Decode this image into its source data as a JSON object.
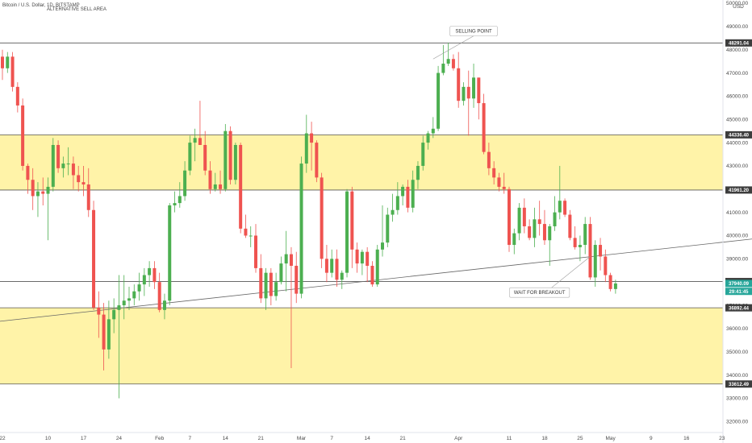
{
  "chart_data": {
    "type": "candlestick",
    "title": "Bitcoin / U.S. Dollar, 1D, BITSTAMP",
    "subtitle": "ALTERNATIVE SELL AREA",
    "currency": "USD",
    "y_range": [
      31800,
      50200
    ],
    "y_ticks": [
      32000,
      33000,
      34000,
      35000,
      36000,
      37000,
      38000,
      39000,
      40000,
      41000,
      42000,
      43000,
      44000,
      45000,
      46000,
      47000,
      48000,
      49000,
      50000
    ],
    "x_ticks": [
      {
        "label": "22",
        "bar": 0
      },
      {
        "label": "10",
        "bar": 9
      },
      {
        "label": "17",
        "bar": 16
      },
      {
        "label": "24",
        "bar": 23
      },
      {
        "label": "Feb",
        "bar": 31
      },
      {
        "label": "7",
        "bar": 37
      },
      {
        "label": "14",
        "bar": 44
      },
      {
        "label": "21",
        "bar": 51
      },
      {
        "label": "Mar",
        "bar": 59
      },
      {
        "label": "7",
        "bar": 65
      },
      {
        "label": "14",
        "bar": 72
      },
      {
        "label": "21",
        "bar": 79
      },
      {
        "label": "Apr",
        "bar": 90
      },
      {
        "label": "11",
        "bar": 100
      },
      {
        "label": "18",
        "bar": 107
      },
      {
        "label": "25",
        "bar": 114
      },
      {
        "label": "May",
        "bar": 120
      },
      {
        "label": "9",
        "bar": 128
      },
      {
        "label": "16",
        "bar": 135
      },
      {
        "label": "23",
        "bar": 142
      }
    ],
    "zones": [
      {
        "from": 41961.2,
        "to": 44336.4,
        "color": "#fff3a8"
      },
      {
        "from": 33612.49,
        "to": 36892.44,
        "color": "#fff3a8"
      }
    ],
    "levels": [
      {
        "value": 48291.04,
        "label": "48291.04"
      },
      {
        "value": 44336.4,
        "label": "44336.40"
      },
      {
        "value": 41961.2,
        "label": "41961.20"
      },
      {
        "value": 38022.53,
        "label": "38022.53"
      },
      {
        "value": 36892.44,
        "label": "36892.44"
      },
      {
        "value": 33612.49,
        "label": "33612.49"
      }
    ],
    "price_labels": [
      {
        "value": 37940.09,
        "label": "37940.09",
        "color": "#26a69a"
      },
      {
        "value": 37600,
        "label": "29:41:45",
        "color": "#26a69a"
      }
    ],
    "trendline": {
      "from": [
        -1,
        36300
      ],
      "to": [
        152,
        39950
      ]
    },
    "annotations": [
      {
        "text": "SELLING POINT",
        "bar": 93,
        "price": 48800,
        "target_bar": 85,
        "target_price": 47600
      },
      {
        "text": "WAIT FOR BREAKOUT",
        "bar": 106,
        "price": 37550,
        "target_bar": 116,
        "target_price": 39100
      }
    ],
    "colors": {
      "up": "#4caf50",
      "down": "#ef5350",
      "level": "#555555",
      "trend": "#666666"
    },
    "candles": [
      {
        "o": 47700,
        "h": 48000,
        "l": 46700,
        "c": 47200
      },
      {
        "o": 47200,
        "h": 47900,
        "l": 47000,
        "c": 47700
      },
      {
        "o": 47700,
        "h": 47900,
        "l": 46200,
        "c": 46400
      },
      {
        "o": 46400,
        "h": 46600,
        "l": 45300,
        "c": 45600
      },
      {
        "o": 45600,
        "h": 45900,
        "l": 42800,
        "c": 43000
      },
      {
        "o": 43000,
        "h": 43100,
        "l": 41800,
        "c": 42400
      },
      {
        "o": 42400,
        "h": 42900,
        "l": 41100,
        "c": 41700
      },
      {
        "o": 41700,
        "h": 42300,
        "l": 40800,
        "c": 41900
      },
      {
        "o": 41900,
        "h": 42500,
        "l": 41300,
        "c": 41800
      },
      {
        "o": 41800,
        "h": 42500,
        "l": 39800,
        "c": 42100
      },
      {
        "o": 42100,
        "h": 44200,
        "l": 41900,
        "c": 43900
      },
      {
        "o": 43900,
        "h": 44100,
        "l": 42700,
        "c": 42900
      },
      {
        "o": 42900,
        "h": 43400,
        "l": 42500,
        "c": 43100
      },
      {
        "o": 43100,
        "h": 43800,
        "l": 42600,
        "c": 43100
      },
      {
        "o": 43100,
        "h": 43400,
        "l": 42000,
        "c": 42600
      },
      {
        "o": 42600,
        "h": 43000,
        "l": 41900,
        "c": 42300
      },
      {
        "o": 42300,
        "h": 43000,
        "l": 41700,
        "c": 42200
      },
      {
        "o": 42200,
        "h": 42900,
        "l": 40800,
        "c": 41100
      },
      {
        "o": 41100,
        "h": 41500,
        "l": 36800,
        "c": 36900
      },
      {
        "o": 36900,
        "h": 37600,
        "l": 35600,
        "c": 36600
      },
      {
        "o": 36600,
        "h": 37100,
        "l": 34200,
        "c": 35100
      },
      {
        "o": 35100,
        "h": 37200,
        "l": 34700,
        "c": 36400
      },
      {
        "o": 36400,
        "h": 37300,
        "l": 35800,
        "c": 36800
      },
      {
        "o": 36800,
        "h": 38300,
        "l": 33000,
        "c": 37000
      },
      {
        "o": 37000,
        "h": 38300,
        "l": 36400,
        "c": 37200
      },
      {
        "o": 37200,
        "h": 37800,
        "l": 36800,
        "c": 37300
      },
      {
        "o": 37300,
        "h": 37900,
        "l": 37000,
        "c": 37600
      },
      {
        "o": 37600,
        "h": 38400,
        "l": 37200,
        "c": 37900
      },
      {
        "o": 37900,
        "h": 38600,
        "l": 37400,
        "c": 38300
      },
      {
        "o": 38300,
        "h": 38900,
        "l": 37800,
        "c": 38600
      },
      {
        "o": 38600,
        "h": 38900,
        "l": 37700,
        "c": 38000
      },
      {
        "o": 38000,
        "h": 38400,
        "l": 36700,
        "c": 36800
      },
      {
        "o": 36800,
        "h": 37500,
        "l": 36400,
        "c": 37200
      },
      {
        "o": 37200,
        "h": 41400,
        "l": 37000,
        "c": 41300
      },
      {
        "o": 41300,
        "h": 41900,
        "l": 41000,
        "c": 41400
      },
      {
        "o": 41400,
        "h": 42300,
        "l": 41200,
        "c": 41700
      },
      {
        "o": 41700,
        "h": 43200,
        "l": 41500,
        "c": 42800
      },
      {
        "o": 42800,
        "h": 44300,
        "l": 42600,
        "c": 44000
      },
      {
        "o": 44000,
        "h": 44600,
        "l": 43200,
        "c": 44200
      },
      {
        "o": 44200,
        "h": 45800,
        "l": 43900,
        "c": 43900
      },
      {
        "o": 43900,
        "h": 44500,
        "l": 42600,
        "c": 42800
      },
      {
        "o": 42800,
        "h": 43200,
        "l": 41800,
        "c": 42000
      },
      {
        "o": 42000,
        "h": 42700,
        "l": 41900,
        "c": 42200
      },
      {
        "o": 42200,
        "h": 42800,
        "l": 41800,
        "c": 42000
      },
      {
        "o": 42000,
        "h": 44800,
        "l": 41900,
        "c": 44500
      },
      {
        "o": 44500,
        "h": 44700,
        "l": 42200,
        "c": 42400
      },
      {
        "o": 42400,
        "h": 44000,
        "l": 42200,
        "c": 43900
      },
      {
        "o": 43900,
        "h": 44000,
        "l": 40100,
        "c": 40300
      },
      {
        "o": 40300,
        "h": 40900,
        "l": 39900,
        "c": 40000
      },
      {
        "o": 40000,
        "h": 40400,
        "l": 39500,
        "c": 40000
      },
      {
        "o": 40000,
        "h": 40500,
        "l": 38400,
        "c": 38600
      },
      {
        "o": 38600,
        "h": 39200,
        "l": 37100,
        "c": 37300
      },
      {
        "o": 37300,
        "h": 38600,
        "l": 36800,
        "c": 38400
      },
      {
        "o": 38400,
        "h": 38600,
        "l": 37000,
        "c": 37400
      },
      {
        "o": 37400,
        "h": 38400,
        "l": 37200,
        "c": 38000
      },
      {
        "o": 38000,
        "h": 39100,
        "l": 37900,
        "c": 38800
      },
      {
        "o": 38800,
        "h": 40200,
        "l": 37600,
        "c": 39200
      },
      {
        "o": 39200,
        "h": 39500,
        "l": 34300,
        "c": 38700
      },
      {
        "o": 38700,
        "h": 39300,
        "l": 37100,
        "c": 37500
      },
      {
        "o": 37500,
        "h": 43400,
        "l": 37300,
        "c": 43100
      },
      {
        "o": 43100,
        "h": 45200,
        "l": 42700,
        "c": 44400
      },
      {
        "o": 44400,
        "h": 44900,
        "l": 42800,
        "c": 44000
      },
      {
        "o": 44000,
        "h": 44100,
        "l": 42300,
        "c": 42500
      },
      {
        "o": 42500,
        "h": 42700,
        "l": 38600,
        "c": 39000
      },
      {
        "o": 39000,
        "h": 39600,
        "l": 38000,
        "c": 38400
      },
      {
        "o": 38400,
        "h": 39400,
        "l": 38200,
        "c": 39000
      },
      {
        "o": 39000,
        "h": 39400,
        "l": 37800,
        "c": 38100
      },
      {
        "o": 38100,
        "h": 38500,
        "l": 37700,
        "c": 38400
      },
      {
        "o": 38400,
        "h": 42000,
        "l": 38200,
        "c": 41900
      },
      {
        "o": 41900,
        "h": 42100,
        "l": 38600,
        "c": 39400
      },
      {
        "o": 39400,
        "h": 39700,
        "l": 38400,
        "c": 38800
      },
      {
        "o": 38800,
        "h": 39400,
        "l": 38300,
        "c": 39300
      },
      {
        "o": 39300,
        "h": 39500,
        "l": 38000,
        "c": 38700
      },
      {
        "o": 38700,
        "h": 38900,
        "l": 37800,
        "c": 37900
      },
      {
        "o": 37900,
        "h": 39600,
        "l": 37800,
        "c": 39400
      },
      {
        "o": 39400,
        "h": 41300,
        "l": 39100,
        "c": 39700
      },
      {
        "o": 39700,
        "h": 41200,
        "l": 39500,
        "c": 40900
      },
      {
        "o": 40900,
        "h": 41800,
        "l": 40600,
        "c": 41100
      },
      {
        "o": 41100,
        "h": 42300,
        "l": 40900,
        "c": 41700
      },
      {
        "o": 41700,
        "h": 42200,
        "l": 41300,
        "c": 42100
      },
      {
        "o": 42100,
        "h": 42400,
        "l": 41000,
        "c": 41200
      },
      {
        "o": 41200,
        "h": 42800,
        "l": 41000,
        "c": 42400
      },
      {
        "o": 42400,
        "h": 43200,
        "l": 42000,
        "c": 43000
      },
      {
        "o": 43000,
        "h": 44300,
        "l": 42800,
        "c": 44000
      },
      {
        "o": 44000,
        "h": 44500,
        "l": 43700,
        "c": 44400
      },
      {
        "o": 44400,
        "h": 45100,
        "l": 44200,
        "c": 44600
      },
      {
        "o": 44600,
        "h": 47300,
        "l": 44500,
        "c": 47000
      },
      {
        "o": 47000,
        "h": 48200,
        "l": 46900,
        "c": 47400
      },
      {
        "o": 47400,
        "h": 48300,
        "l": 47300,
        "c": 47600
      },
      {
        "o": 47600,
        "h": 47800,
        "l": 47100,
        "c": 47200
      },
      {
        "o": 47200,
        "h": 47900,
        "l": 45500,
        "c": 45800
      },
      {
        "o": 45800,
        "h": 46600,
        "l": 45600,
        "c": 46400
      },
      {
        "o": 46400,
        "h": 47100,
        "l": 44300,
        "c": 45900
      },
      {
        "o": 45900,
        "h": 47400,
        "l": 45500,
        "c": 46800
      },
      {
        "o": 46800,
        "h": 46800,
        "l": 45000,
        "c": 45700
      },
      {
        "o": 45700,
        "h": 46100,
        "l": 43500,
        "c": 43600
      },
      {
        "o": 43600,
        "h": 44000,
        "l": 42600,
        "c": 42900
      },
      {
        "o": 42900,
        "h": 43200,
        "l": 42200,
        "c": 42500
      },
      {
        "o": 42500,
        "h": 42700,
        "l": 41900,
        "c": 42100
      },
      {
        "o": 42100,
        "h": 42700,
        "l": 41800,
        "c": 42000
      },
      {
        "o": 42000,
        "h": 42100,
        "l": 39300,
        "c": 39600
      },
      {
        "o": 39600,
        "h": 40300,
        "l": 39200,
        "c": 40100
      },
      {
        "o": 40100,
        "h": 41400,
        "l": 39800,
        "c": 41200
      },
      {
        "o": 41200,
        "h": 41600,
        "l": 40100,
        "c": 40400
      },
      {
        "o": 40400,
        "h": 40700,
        "l": 39800,
        "c": 39900
      },
      {
        "o": 39900,
        "h": 41200,
        "l": 39500,
        "c": 40700
      },
      {
        "o": 40700,
        "h": 41500,
        "l": 40000,
        "c": 40500
      },
      {
        "o": 40500,
        "h": 41100,
        "l": 39600,
        "c": 39800
      },
      {
        "o": 39800,
        "h": 40500,
        "l": 38700,
        "c": 40400
      },
      {
        "o": 40400,
        "h": 41700,
        "l": 40200,
        "c": 41000
      },
      {
        "o": 41000,
        "h": 43000,
        "l": 40700,
        "c": 41500
      },
      {
        "o": 41500,
        "h": 41600,
        "l": 40800,
        "c": 40900
      },
      {
        "o": 40900,
        "h": 41100,
        "l": 39800,
        "c": 39900
      },
      {
        "o": 39900,
        "h": 40400,
        "l": 39400,
        "c": 39500
      },
      {
        "o": 39500,
        "h": 40000,
        "l": 38900,
        "c": 39600
      },
      {
        "o": 39600,
        "h": 40800,
        "l": 39200,
        "c": 40500
      },
      {
        "o": 40500,
        "h": 40800,
        "l": 38100,
        "c": 38200
      },
      {
        "o": 38200,
        "h": 39800,
        "l": 37800,
        "c": 39600
      },
      {
        "o": 39600,
        "h": 39900,
        "l": 38500,
        "c": 39100
      },
      {
        "o": 39100,
        "h": 39400,
        "l": 38000,
        "c": 38300
      },
      {
        "o": 38300,
        "h": 38400,
        "l": 37600,
        "c": 37700
      },
      {
        "o": 37700,
        "h": 38100,
        "l": 37500,
        "c": 37940
      }
    ]
  }
}
